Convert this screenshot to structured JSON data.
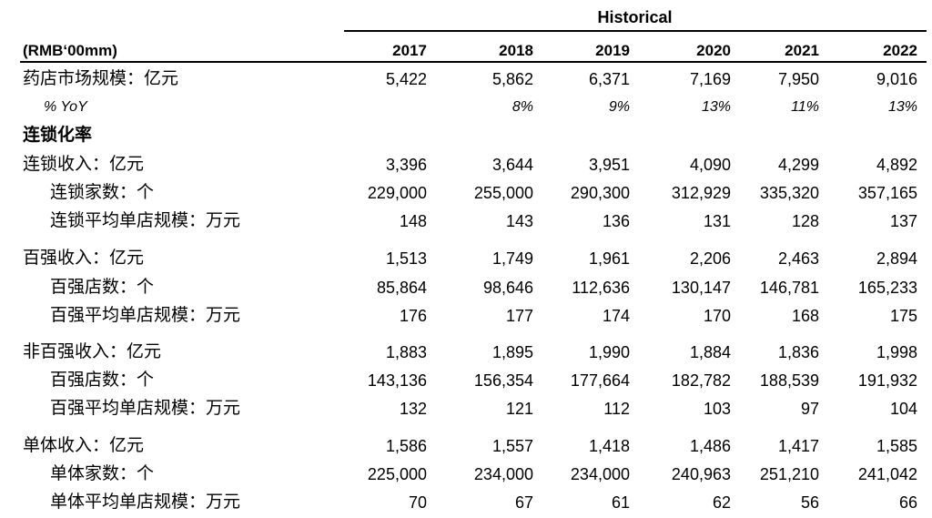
{
  "header": {
    "group_label": "Historical",
    "unit_label": "(RMB‘00mm)",
    "years": [
      "2017",
      "2018",
      "2019",
      "2020",
      "2021",
      "2022"
    ]
  },
  "rows": [
    {
      "label": "药店市场规模：亿元",
      "values": [
        "5,422",
        "5,862",
        "6,371",
        "7,169",
        "7,950",
        "9,016"
      ]
    },
    {
      "label": "% YoY",
      "values": [
        "",
        "8%",
        "9%",
        "13%",
        "11%",
        "13%"
      ]
    },
    {
      "label": "连锁化率",
      "values": [
        "",
        "",
        "",
        "",
        "",
        ""
      ]
    },
    {
      "label": "连锁收入：亿元",
      "values": [
        "3,396",
        "3,644",
        "3,951",
        "4,090",
        "4,299",
        "4,892"
      ]
    },
    {
      "label": "连锁家数：个",
      "values": [
        "229,000",
        "255,000",
        "290,300",
        "312,929",
        "335,320",
        "357,165"
      ]
    },
    {
      "label": "连锁平均单店规模：万元",
      "values": [
        "148",
        "143",
        "136",
        "131",
        "128",
        "137"
      ]
    },
    {
      "label": "百强收入：亿元",
      "values": [
        "1,513",
        "1,749",
        "1,961",
        "2,206",
        "2,463",
        "2,894"
      ]
    },
    {
      "label": "百强店数：个",
      "values": [
        "85,864",
        "98,646",
        "112,636",
        "130,147",
        "146,781",
        "165,233"
      ]
    },
    {
      "label": "百强平均单店规模：万元",
      "values": [
        "176",
        "177",
        "174",
        "170",
        "168",
        "175"
      ]
    },
    {
      "label": "非百强收入：亿元",
      "values": [
        "1,883",
        "1,895",
        "1,990",
        "1,884",
        "1,836",
        "1,998"
      ]
    },
    {
      "label": "百强店数：个",
      "values": [
        "143,136",
        "156,354",
        "177,664",
        "182,782",
        "188,539",
        "191,932"
      ]
    },
    {
      "label": "百强平均单店规模：万元",
      "values": [
        "132",
        "121",
        "112",
        "103",
        "97",
        "104"
      ]
    },
    {
      "label": "单体收入：亿元",
      "values": [
        "1,586",
        "1,557",
        "1,418",
        "1,486",
        "1,417",
        "1,585"
      ]
    },
    {
      "label": "单体家数：个",
      "values": [
        "225,000",
        "234,000",
        "234,000",
        "240,963",
        "251,210",
        "241,042"
      ]
    },
    {
      "label": "单体平均单店规模：万元",
      "values": [
        "70",
        "67",
        "61",
        "62",
        "56",
        "66"
      ]
    }
  ]
}
